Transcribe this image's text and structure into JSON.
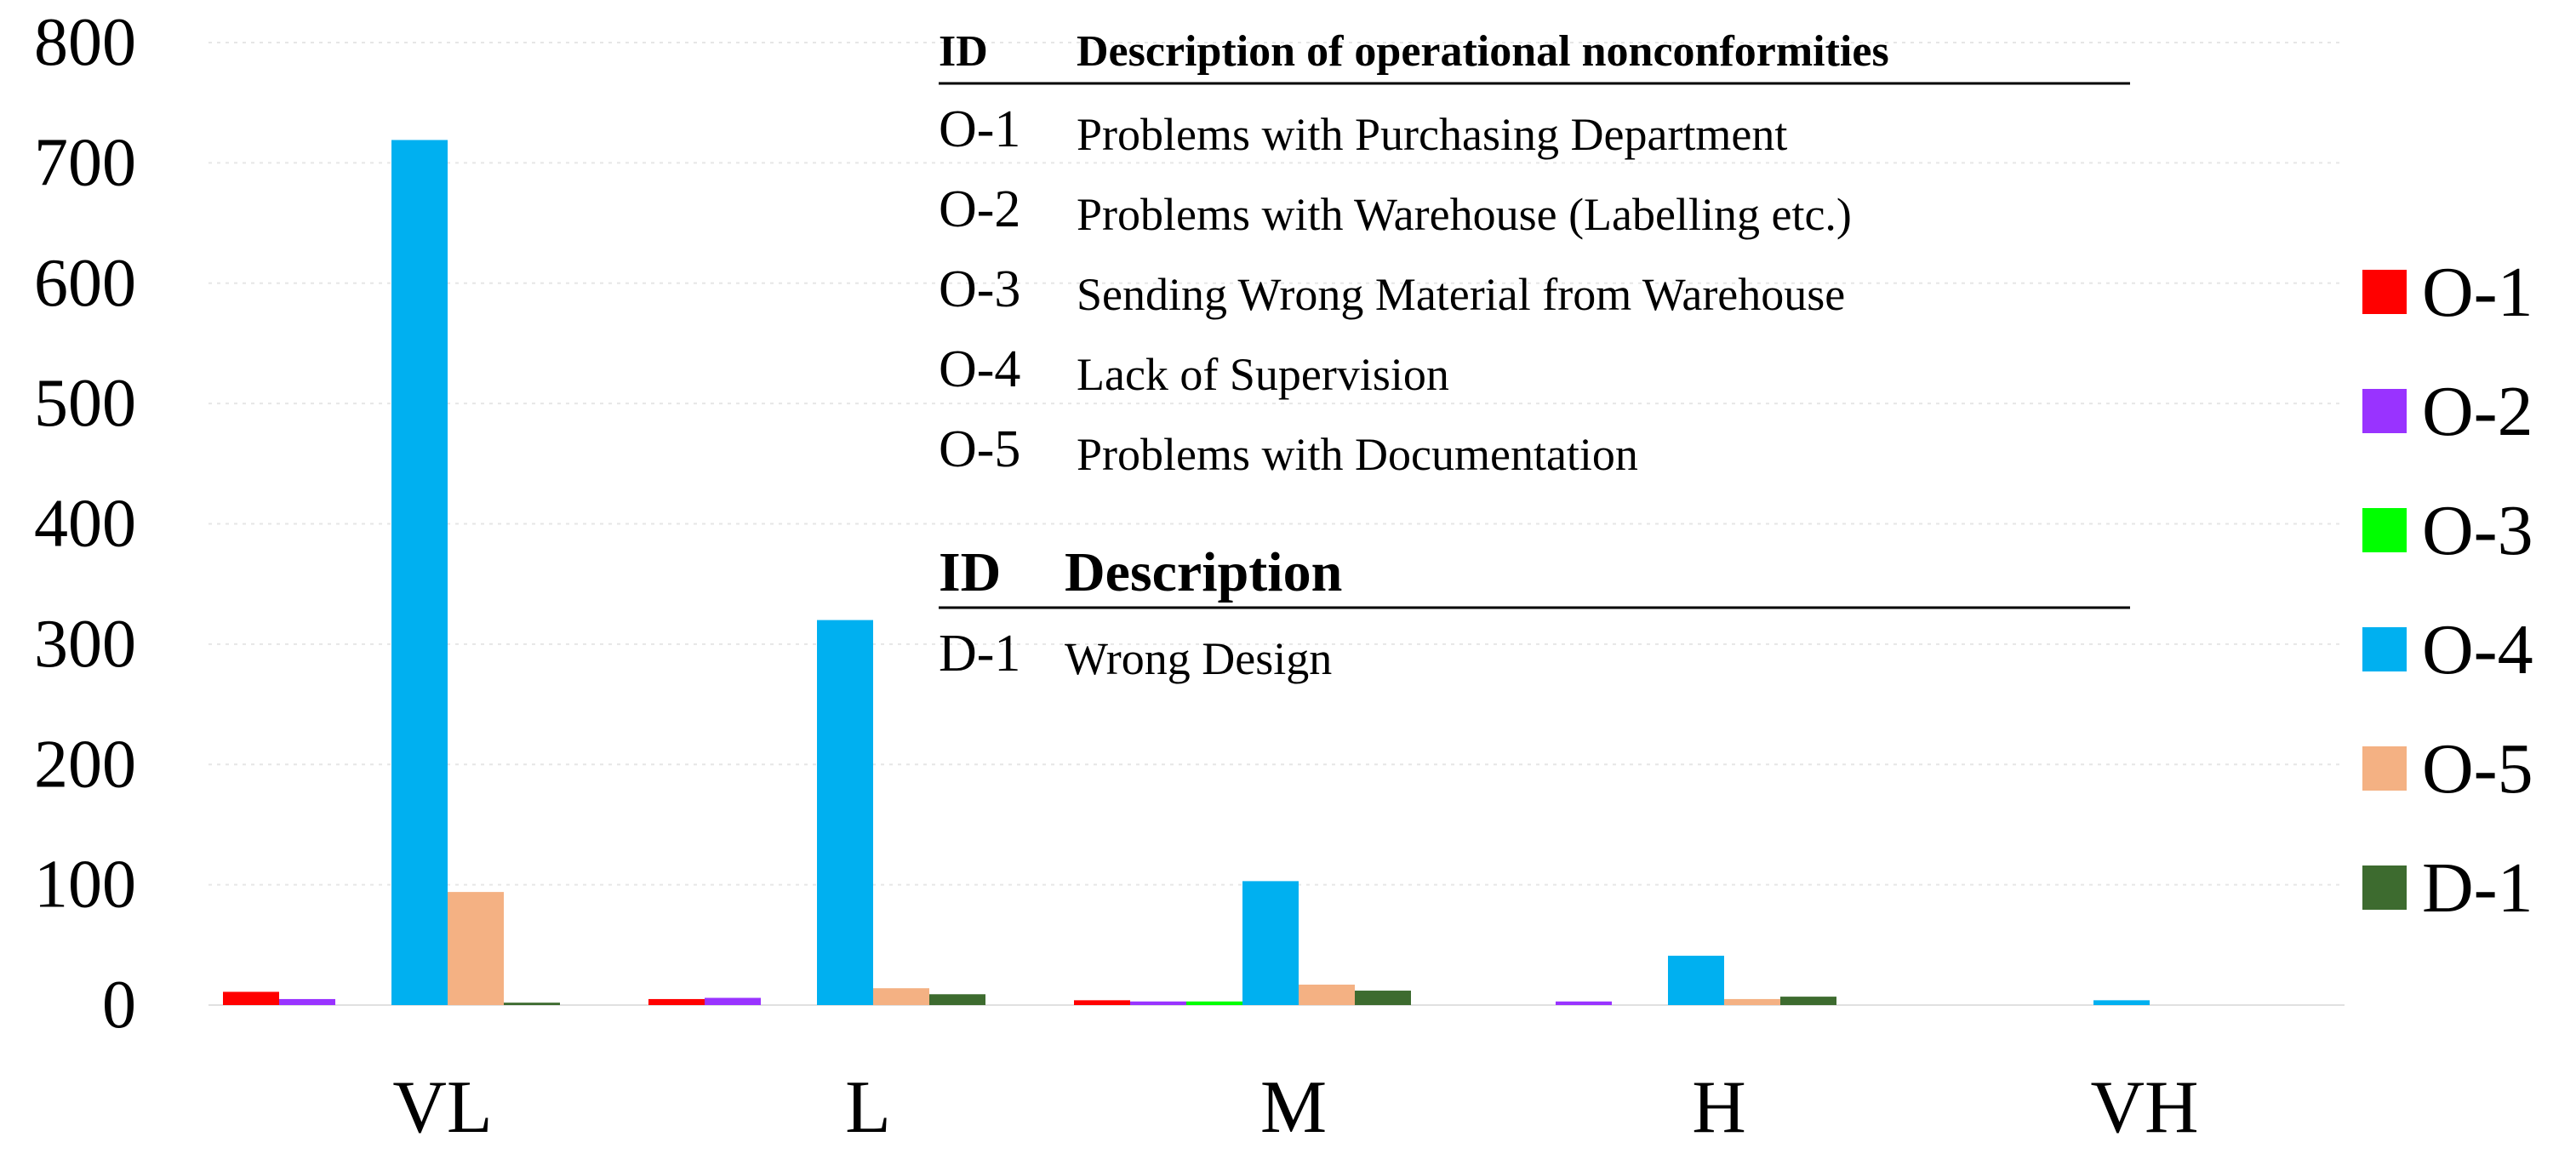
{
  "chart_data": {
    "type": "bar",
    "categories": [
      "VL",
      "L",
      "M",
      "H",
      "VH"
    ],
    "ylim": [
      0,
      800
    ],
    "yticks": [
      0,
      100,
      200,
      300,
      400,
      500,
      600,
      700,
      800
    ],
    "grid": true,
    "legend_position": "right",
    "series": [
      {
        "name": "O-1",
        "color": "#ff0000",
        "values": [
          11,
          5,
          4,
          0,
          0
        ]
      },
      {
        "name": "O-2",
        "color": "#9933ff",
        "values": [
          5,
          6,
          3,
          3,
          0
        ]
      },
      {
        "name": "O-3",
        "color": "#00ff00",
        "values": [
          0,
          0,
          3,
          0,
          0
        ]
      },
      {
        "name": "O-4",
        "color": "#00b0f0",
        "values": [
          719,
          320,
          103,
          41,
          4
        ]
      },
      {
        "name": "O-5",
        "color": "#f4b183",
        "values": [
          94,
          14,
          17,
          5,
          0
        ]
      },
      {
        "name": "D-1",
        "color": "#3d6b2f",
        "values": [
          2,
          9,
          12,
          7,
          0
        ]
      }
    ]
  },
  "table1": {
    "header_id": "ID",
    "header_desc": "Description of operational nonconformities",
    "rows": [
      {
        "id": "O-1",
        "desc": "Problems with Purchasing Department"
      },
      {
        "id": "O-2",
        "desc": "Problems with Warehouse (Labelling etc.)"
      },
      {
        "id": "O-3",
        "desc": "Sending Wrong Material from Warehouse"
      },
      {
        "id": "O-4",
        "desc": "Lack of Supervision"
      },
      {
        "id": "O-5",
        "desc": "Problems with Documentation"
      }
    ]
  },
  "table2": {
    "header_id": "ID",
    "header_desc": "Description",
    "rows": [
      {
        "id": "D-1",
        "desc": "Wrong Design"
      }
    ]
  }
}
